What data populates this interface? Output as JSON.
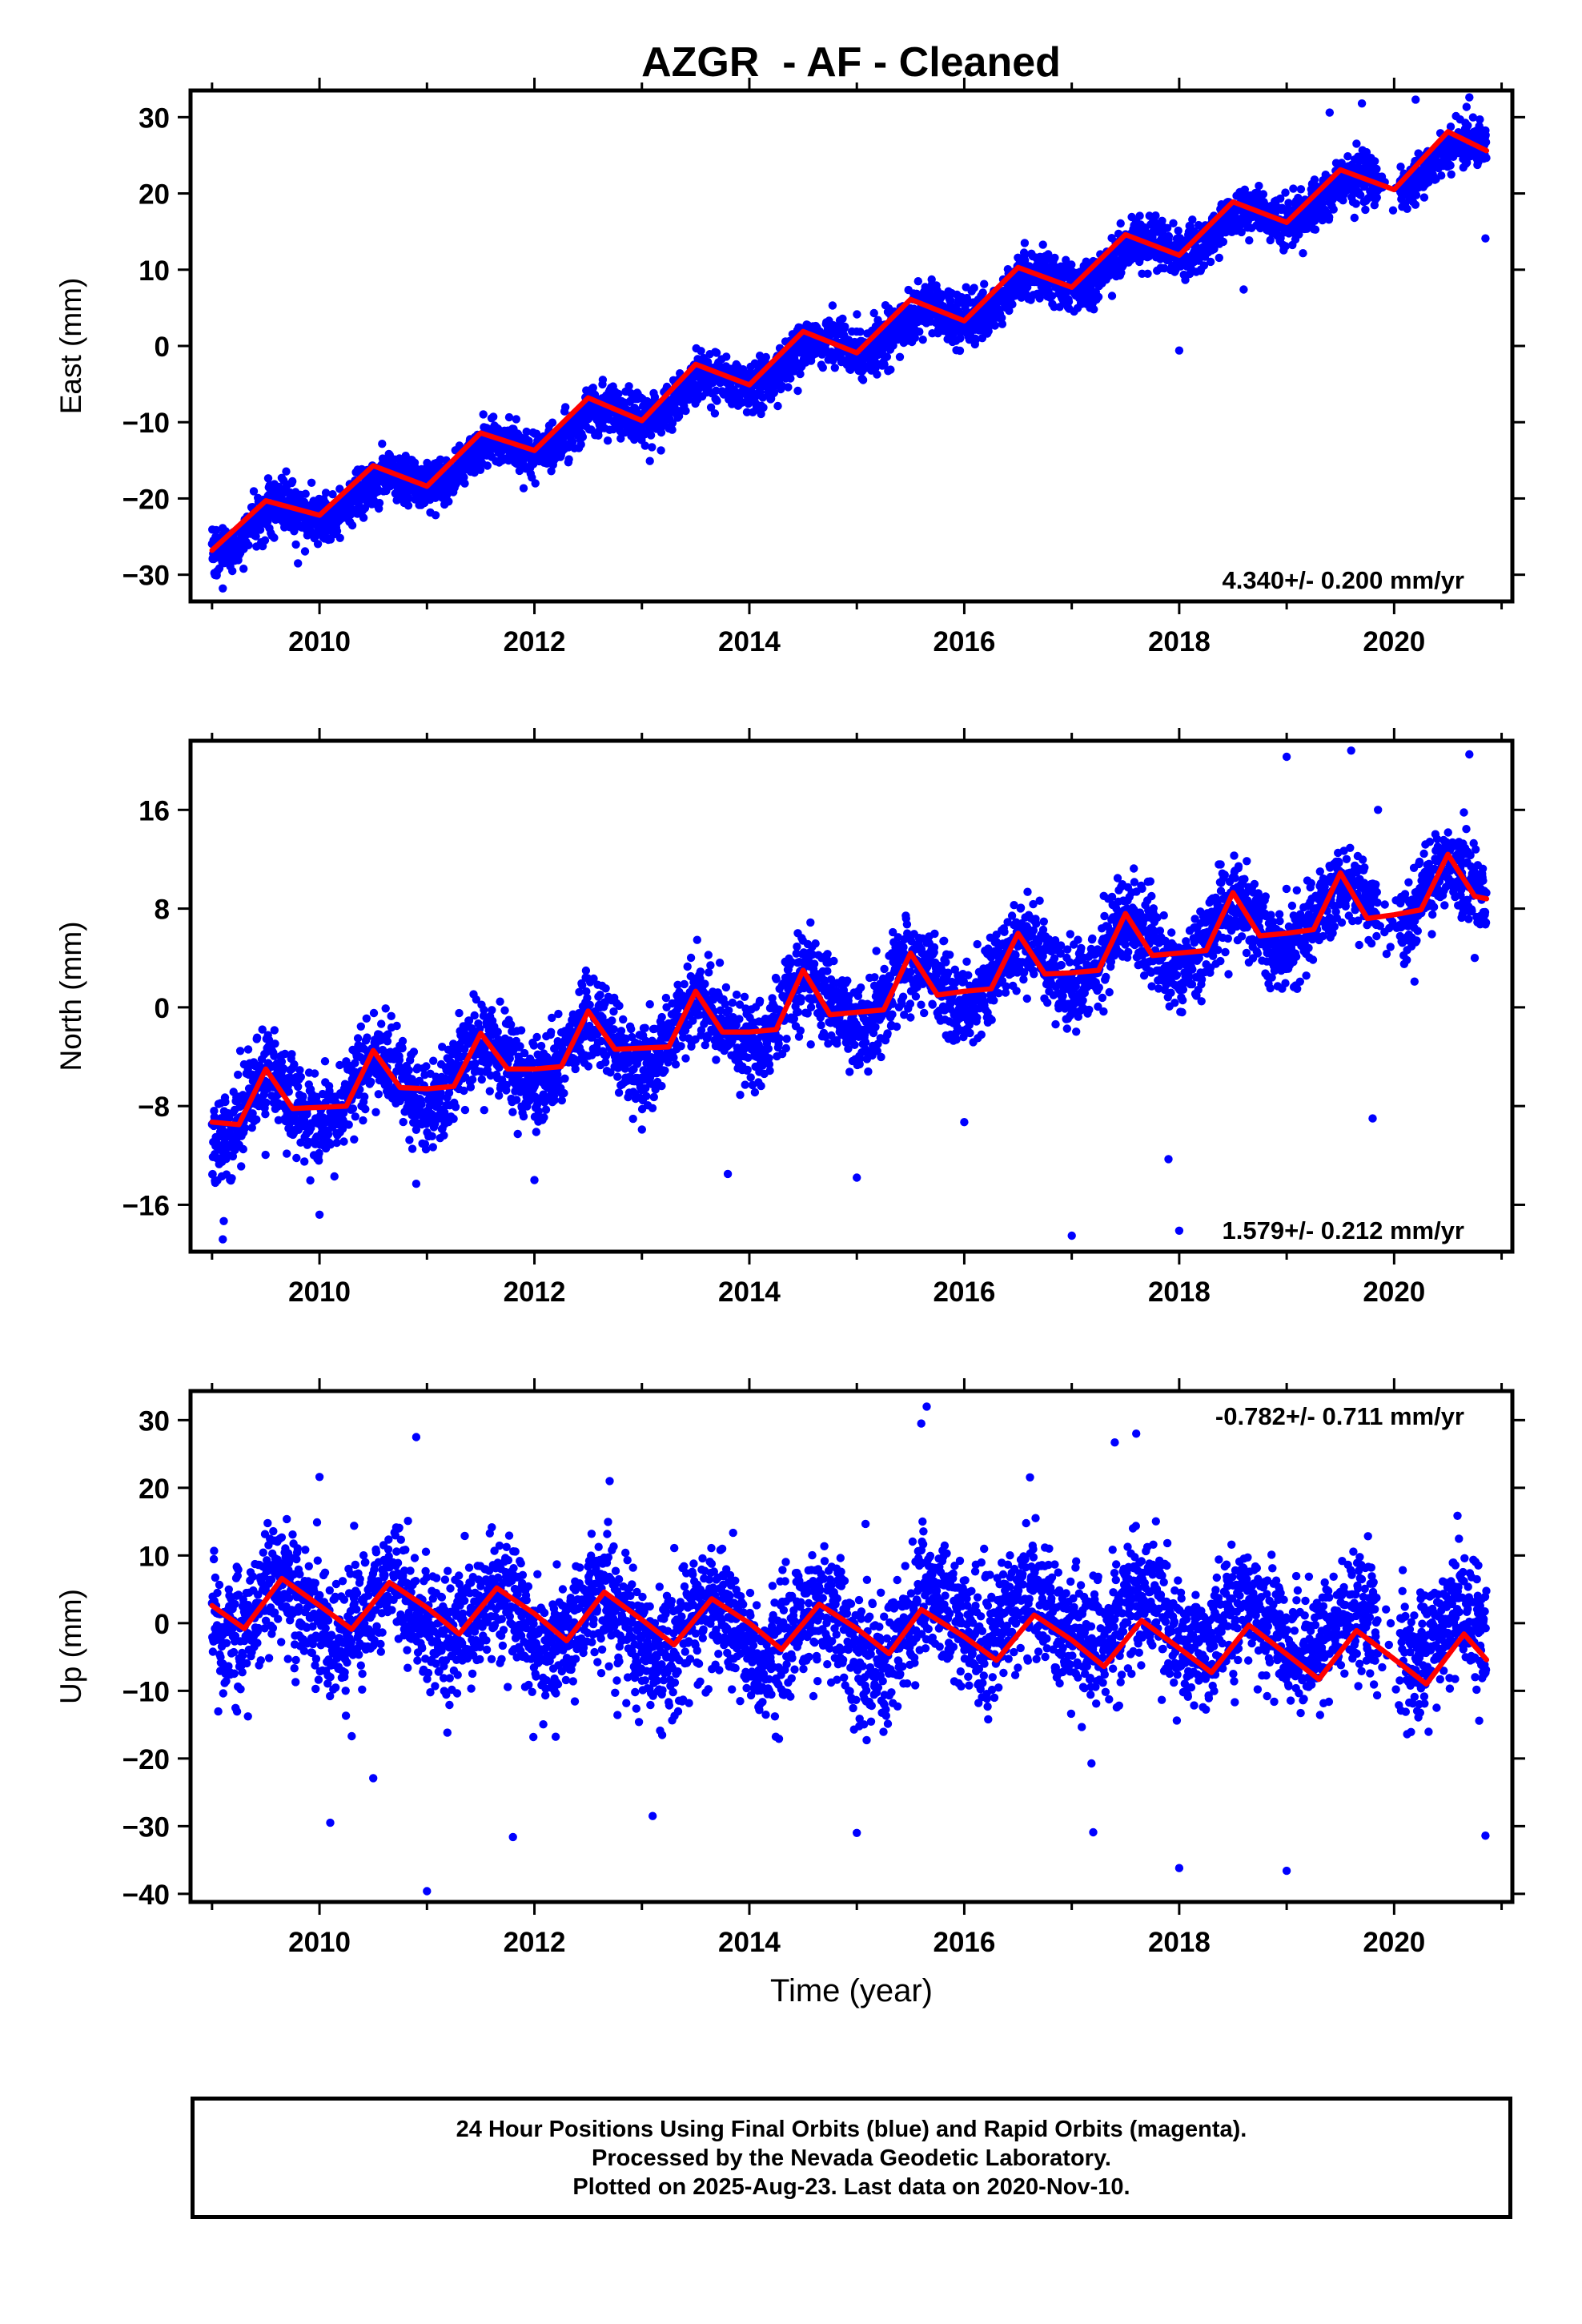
{
  "title": "AZGR  - AF - Cleaned",
  "footer": {
    "line1": "24 Hour Positions Using Final Orbits (blue) and Rapid Orbits (magenta).",
    "line2": "Processed by the Nevada Geodetic Laboratory.",
    "line3": "Plotted on 2025-Aug-23. Last data on 2020-Nov-10."
  },
  "colors": {
    "points": "#0000ff",
    "model": "#ff0000",
    "frame": "#000000"
  },
  "chart_data": [
    {
      "type": "scatter",
      "xlabel": "",
      "ylabel": "East (mm)",
      "xlim": [
        2008.8,
        2021.1
      ],
      "ylim": [
        -33.5,
        33.5
      ],
      "xticks": [
        2010,
        2012,
        2014,
        2016,
        2018,
        2020
      ],
      "yticks": [
        -30,
        -20,
        -10,
        0,
        10,
        20,
        30
      ],
      "grid": false,
      "annotation": "4.340+/- 0.200 mm/yr",
      "annotation_position": "bottom-right",
      "trend": {
        "x0": 2009.0,
        "y0": -25.6,
        "slope": 4.34,
        "annual_amplitude": 1.8,
        "annual_peak": 0.6
      },
      "scatter_sd": 1.6,
      "data_range": [
        2009.0,
        2020.86
      ],
      "gaps": [
        [
          2019.85,
          2020.05
        ]
      ],
      "series": [
        {
          "type": "line",
          "x": [
            2009.0,
            2009.5,
            2010.0,
            2010.5,
            2011.0,
            2011.5,
            2012.0,
            2012.5,
            2013.0,
            2013.5,
            2014.0,
            2014.5,
            2015.0,
            2015.5,
            2016.0,
            2016.5,
            2017.0,
            2017.5,
            2018.0,
            2018.5,
            2019.0,
            2019.5,
            2020.0,
            2020.5,
            2020.86
          ],
          "y": [
            -26.8,
            -20.3,
            -22.2,
            -15.7,
            -18.4,
            -11.4,
            -13.7,
            -6.8,
            -9.8,
            -2.4,
            -5.1,
            1.9,
            -0.9,
            6.1,
            3.3,
            10.3,
            7.7,
            14.6,
            11.9,
            18.9,
            16.2,
            23.1,
            20.5,
            28.1,
            25.6
          ]
        }
      ],
      "outliers": [
        {
          "x": 2018.0,
          "y": -0.6
        },
        {
          "x": 2019.4,
          "y": 30.6
        },
        {
          "x": 2019.7,
          "y": 31.8
        },
        {
          "x": 2020.2,
          "y": 32.3
        },
        {
          "x": 2020.7,
          "y": 32.6
        },
        {
          "x": 2020.85,
          "y": 14.1
        },
        {
          "x": 2009.1,
          "y": -31.8
        },
        {
          "x": 2009.8,
          "y": -28.5
        },
        {
          "x": 2018.6,
          "y": 7.4
        }
      ]
    },
    {
      "type": "scatter",
      "xlabel": "",
      "ylabel": "North (mm)",
      "xlim": [
        2008.8,
        2021.1
      ],
      "ylim": [
        -19.8,
        21.6
      ],
      "xticks": [
        2010,
        2012,
        2014,
        2016,
        2018,
        2020
      ],
      "yticks": [
        -16,
        -8,
        0,
        8,
        16
      ],
      "grid": false,
      "annotation": "1.579+/- 0.212 mm/yr",
      "annotation_position": "bottom-right",
      "trend": {
        "x0": 2009.0,
        "y0": -8.9,
        "slope": 1.579,
        "annual_amplitude": 2.3,
        "annual_peak": 0.52
      },
      "scatter_sd": 1.7,
      "data_range": [
        2009.0,
        2020.86
      ],
      "gaps": [
        [
          2019.85,
          2020.05
        ]
      ],
      "series": [
        {
          "type": "line",
          "x": [
            2009.0,
            2009.25,
            2009.5,
            2009.75,
            2010.0,
            2010.25,
            2010.5,
            2010.75,
            2011.0,
            2011.25,
            2011.5,
            2011.75,
            2012.0,
            2012.25,
            2012.5,
            2012.75,
            2013.0,
            2013.25,
            2013.5,
            2013.75,
            2014.0,
            2014.25,
            2014.5,
            2014.75,
            2015.0,
            2015.25,
            2015.5,
            2015.75,
            2016.0,
            2016.25,
            2016.5,
            2016.75,
            2017.0,
            2017.25,
            2017.5,
            2017.75,
            2018.0,
            2018.25,
            2018.5,
            2018.75,
            2019.0,
            2019.25,
            2019.5,
            2019.75,
            2020.0,
            2020.25,
            2020.5,
            2020.75,
            2020.86
          ],
          "y": [
            -9.3,
            -9.5,
            -5.0,
            -8.2,
            -8.1,
            -8.0,
            -3.5,
            -6.5,
            -6.6,
            -6.4,
            -2.1,
            -5.0,
            -5.0,
            -4.8,
            -0.3,
            -3.4,
            -3.3,
            -3.2,
            1.3,
            -2.0,
            -2.0,
            -1.8,
            3.0,
            -0.6,
            -0.4,
            -0.2,
            4.4,
            1.0,
            1.3,
            1.5,
            6.0,
            2.7,
            2.8,
            3.0,
            7.6,
            4.2,
            4.4,
            4.6,
            9.3,
            5.8,
            6.0,
            6.3,
            10.9,
            7.2,
            7.5,
            7.9,
            12.4,
            9.0,
            8.8
          ]
        }
      ],
      "outliers": [
        {
          "x": 2009.1,
          "y": -18.8
        },
        {
          "x": 2010.0,
          "y": -16.8
        },
        {
          "x": 2010.9,
          "y": -14.3
        },
        {
          "x": 2012.0,
          "y": -14.0
        },
        {
          "x": 2013.0,
          "y": -9.9
        },
        {
          "x": 2013.8,
          "y": -13.5
        },
        {
          "x": 2015.0,
          "y": -13.8
        },
        {
          "x": 2016.0,
          "y": -9.3
        },
        {
          "x": 2017.0,
          "y": -18.5
        },
        {
          "x": 2017.9,
          "y": -12.3
        },
        {
          "x": 2018.0,
          "y": -18.1
        },
        {
          "x": 2019.0,
          "y": 20.3
        },
        {
          "x": 2019.6,
          "y": 20.8
        },
        {
          "x": 2019.8,
          "y": -9.0
        },
        {
          "x": 2019.85,
          "y": 16.0
        },
        {
          "x": 2020.7,
          "y": 20.5
        },
        {
          "x": 2020.75,
          "y": 4.0
        }
      ]
    },
    {
      "type": "scatter",
      "xlabel": "Time (year)",
      "ylabel": "Up (mm)",
      "xlim": [
        2008.8,
        2021.1
      ],
      "ylim": [
        -41.2,
        34.3
      ],
      "xticks": [
        2010,
        2012,
        2014,
        2016,
        2018,
        2020
      ],
      "yticks": [
        -40,
        -30,
        -20,
        -10,
        0,
        10,
        20,
        30
      ],
      "grid": false,
      "annotation": "-0.782+/- 0.711 mm/yr",
      "annotation_position": "top-right",
      "trend": {
        "x0": 2009.0,
        "y0": 2.7,
        "slope": -0.782,
        "annual_amplitude": 4.0,
        "annual_peak": 0.65,
        "step": {
          "x": 2015.55,
          "dy": 4.0
        }
      },
      "scatter_sd": 4.6,
      "data_range": [
        2009.0,
        2020.86
      ],
      "gaps": [
        [
          2019.85,
          2020.05
        ]
      ],
      "series": [
        {
          "type": "line",
          "x": [
            2009.0,
            2009.3,
            2009.65,
            2010.0,
            2010.3,
            2010.65,
            2011.0,
            2011.3,
            2011.65,
            2012.0,
            2012.3,
            2012.65,
            2013.0,
            2013.3,
            2013.65,
            2014.0,
            2014.3,
            2014.65,
            2015.0,
            2015.3,
            2015.6,
            2016.0,
            2016.3,
            2016.65,
            2017.0,
            2017.3,
            2017.65,
            2018.0,
            2018.3,
            2018.65,
            2019.0,
            2019.3,
            2019.65,
            2020.0,
            2020.3,
            2020.65,
            2020.86
          ],
          "y": [
            2.6,
            -0.8,
            6.6,
            2.6,
            -0.9,
            6.0,
            2.3,
            -1.6,
            5.2,
            1.4,
            -2.6,
            4.6,
            0.5,
            -3.2,
            3.6,
            0.0,
            -3.9,
            2.8,
            -0.8,
            -4.5,
            2.0,
            -2.0,
            -5.5,
            1.2,
            -2.5,
            -6.4,
            0.4,
            -3.7,
            -7.3,
            -0.3,
            -4.6,
            -8.3,
            -1.1,
            -5.3,
            -9.0,
            -1.6,
            -5.4
          ]
        }
      ],
      "outliers": [
        {
          "x": 2010.0,
          "y": 21.6
        },
        {
          "x": 2010.1,
          "y": -29.5
        },
        {
          "x": 2010.3,
          "y": -16.7
        },
        {
          "x": 2010.5,
          "y": -22.9
        },
        {
          "x": 2010.9,
          "y": 27.5
        },
        {
          "x": 2011.0,
          "y": -39.6
        },
        {
          "x": 2011.8,
          "y": -31.6
        },
        {
          "x": 2012.7,
          "y": 21.0
        },
        {
          "x": 2013.1,
          "y": -28.5
        },
        {
          "x": 2015.0,
          "y": -31.0
        },
        {
          "x": 2015.6,
          "y": 29.5
        },
        {
          "x": 2015.65,
          "y": 32.0
        },
        {
          "x": 2017.2,
          "y": -30.9
        },
        {
          "x": 2017.4,
          "y": 26.7
        },
        {
          "x": 2017.6,
          "y": 28.0
        },
        {
          "x": 2018.0,
          "y": -36.2
        },
        {
          "x": 2019.0,
          "y": -36.6
        },
        {
          "x": 2020.85,
          "y": -31.4
        }
      ]
    }
  ]
}
